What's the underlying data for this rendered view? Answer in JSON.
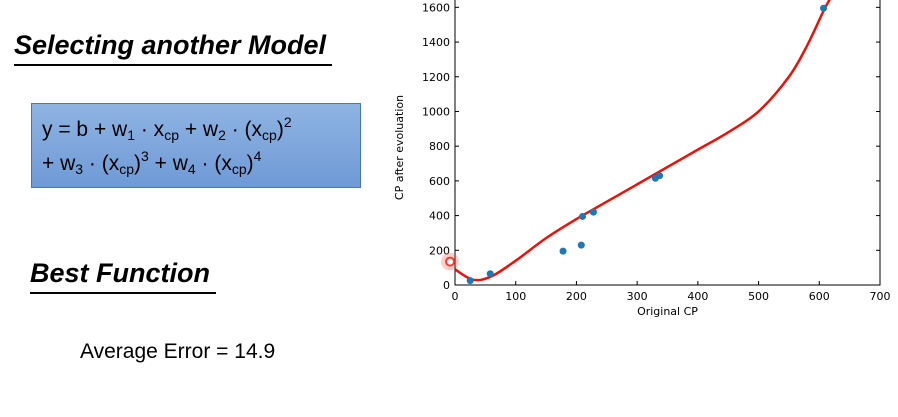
{
  "slide": {
    "title": "Selecting another Model",
    "formula": {
      "l1_a": "y = b + w",
      "l1_w1": "1",
      "l1_b": " · x",
      "l1_cp1": "cp",
      "l1_c": " + w",
      "l1_w2": "2",
      "l1_d": " · (x",
      "l1_cp2": "cp",
      "l1_e": ")",
      "l1_p2": "2",
      "l2_a": "+ w",
      "l2_w3": "3",
      "l2_b": " · (x",
      "l2_cp3": "cp",
      "l2_c": ")",
      "l2_p3": "3",
      "l2_d": " + w",
      "l2_w4": "4",
      "l2_e": " · (x",
      "l2_cp4": "cp",
      "l2_f": ")",
      "l2_p4": "4"
    },
    "best_heading": "Best Function",
    "average_error_label": "Average Error = ",
    "average_error_value": "14.9"
  },
  "chart_data": {
    "type": "scatter",
    "xlabel": "Original CP",
    "ylabel": "CP after evoluation",
    "xlim": [
      0,
      700
    ],
    "ylim": [
      0,
      1700
    ],
    "xticks": [
      0,
      100,
      200,
      300,
      400,
      500,
      600,
      700
    ],
    "yticks": [
      0,
      200,
      400,
      600,
      800,
      1000,
      1200,
      1400,
      1600
    ],
    "points": {
      "x": [
        25,
        58,
        178,
        208,
        210,
        228,
        330,
        337,
        607
      ],
      "y": [
        25,
        65,
        195,
        230,
        395,
        420,
        615,
        630,
        1595
      ]
    },
    "highlighted_point": {
      "x": 0,
      "y": 135
    },
    "fit_curve": {
      "x": [
        0,
        30,
        60,
        100,
        150,
        200,
        250,
        300,
        350,
        400,
        450,
        500,
        550,
        580,
        610,
        630
      ],
      "y": [
        90,
        30,
        50,
        140,
        270,
        380,
        480,
        580,
        680,
        780,
        880,
        1000,
        1200,
        1380,
        1600,
        1720
      ]
    },
    "point_color": "#1f77b4",
    "curve_color": "#e8130a",
    "highlight_color": "#ff3b30"
  }
}
